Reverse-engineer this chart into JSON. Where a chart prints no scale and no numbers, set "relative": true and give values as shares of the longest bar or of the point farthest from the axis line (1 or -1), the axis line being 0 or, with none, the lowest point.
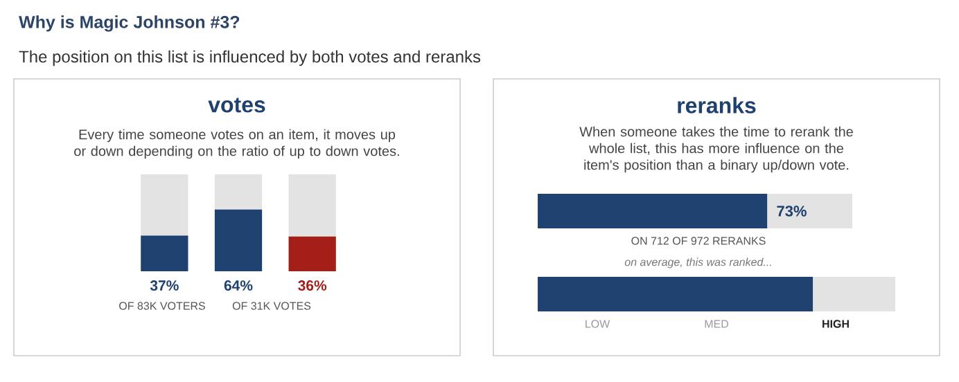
{
  "chart_data": [
    {
      "type": "other",
      "title": "Why is Magic Johnson #3?",
      "subtitle": "The position on this list is influenced by both votes and reranks"
    },
    {
      "type": "bar",
      "title": "votes",
      "subtitle": "Every time someone votes on an item, it moves up or down depending on the ratio of up to down votes.",
      "categories": [
        null,
        null,
        null
      ],
      "stacked": true,
      "ylim": [
        0,
        100
      ],
      "tick_labels": false,
      "series": [
        {
          "colors": [
            "#1f4170",
            "#1f4170",
            "#a31f17"
          ],
          "values": [
            37,
            64,
            36
          ],
          "value_labels": [
            "37%",
            "64%",
            "36%"
          ]
        },
        {
          "color": "#e3e3e3",
          "values": [
            63,
            36,
            64
          ]
        }
      ],
      "annotations": [
        "OF 83K VOTERS",
        "OF 31K VOTES"
      ]
    },
    {
      "type": "bar",
      "orientation": "horizontal",
      "title": "reranks",
      "subtitle": "When someone takes the time to rerank the whole list, this has more influence on the item's position than a binary up/down vote.",
      "categories": [
        null
      ],
      "stacked": true,
      "xlim": [
        0,
        100
      ],
      "tick_labels": false,
      "series": [
        {
          "color": "#1f4170",
          "values": [
            73
          ],
          "value_labels": [
            "73%"
          ]
        },
        {
          "color": "#e3e3e3",
          "values": [
            27
          ]
        }
      ],
      "annotations": [
        "ON 712 OF 972 RERANKS"
      ]
    },
    {
      "type": "bar",
      "orientation": "horizontal",
      "relative": true,
      "subtitle": "on average, this was ranked...",
      "categories": [
        null
      ],
      "stacked": true,
      "series": [
        {
          "color": "#1f4170",
          "values": [
            0.77
          ]
        },
        {
          "color": "#e3e3e3",
          "values": [
            0.23
          ]
        }
      ],
      "annotations": [
        "LOW",
        "MED",
        "HIGH"
      ]
    }
  ]
}
